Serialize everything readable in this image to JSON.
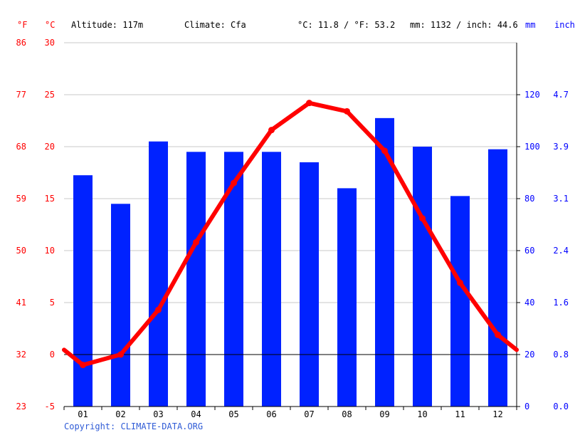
{
  "header": {
    "unit_f": "°F",
    "unit_c": "°C",
    "altitude": "Altitude: 117m",
    "climate": "Climate: Cfa",
    "avg_temp": "°C: 11.8 / °F: 53.2",
    "precip_total": "mm: 1132 / inch: 44.6",
    "unit_mm": "mm",
    "unit_inch": "inch"
  },
  "copyright": "Copyright: CLIMATE-DATA.ORG",
  "chart_data": {
    "type": "bar",
    "categories": [
      "01",
      "02",
      "03",
      "04",
      "05",
      "06",
      "07",
      "08",
      "09",
      "10",
      "11",
      "12"
    ],
    "series": [
      {
        "values": [
          89,
          78,
          102,
          98,
          98,
          98,
          94,
          84,
          111,
          100,
          81,
          99
        ],
        "color": "#0022ff"
      },
      {
        "type": "line",
        "values": [
          -1.0,
          0.0,
          4.3,
          10.8,
          16.5,
          21.6,
          24.2,
          23.4,
          19.6,
          13.1,
          6.9,
          1.9
        ],
        "color": "#ff0000"
      }
    ],
    "temp_axis_c": {
      "ticks": [
        -5,
        0,
        5,
        10,
        15,
        20,
        25,
        30
      ],
      "range": [
        -5,
        30
      ]
    },
    "temp_axis_f": {
      "ticks": [
        23,
        32,
        41,
        50,
        59,
        68,
        77,
        86
      ]
    },
    "precip_axis_mm": {
      "ticks": [
        0,
        20,
        40,
        60,
        80,
        100,
        120
      ],
      "range": [
        0,
        140
      ]
    },
    "precip_axis_inch": {
      "ticks": [
        "0.0",
        "0.8",
        "1.6",
        "2.4",
        "3.1",
        "3.9",
        "4.7"
      ]
    },
    "grid": true,
    "zero_line_temp_c": 0
  }
}
